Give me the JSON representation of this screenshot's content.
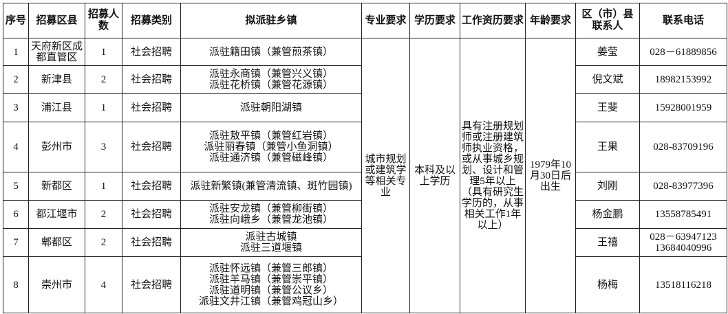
{
  "headers": [
    "序号",
    "招募区县",
    "招募人数",
    "招募类别",
    "拟派驻乡镇",
    "专业要求",
    "学历要求",
    "工作资历要求",
    "年龄要求",
    "区（市）县联系人",
    "联系电话"
  ],
  "shared": {
    "major": "城市规划或建筑学等相关专业",
    "education": "本科及以上学历",
    "experience": "具有注册规划师或注册建筑师执业资格，或从事城乡规划、设计和管理5年以上（具有研究生学历的，从事相关工作1年以上）",
    "age": "1979年10月30日后出生"
  },
  "rows": [
    {
      "no": "1",
      "county": "天府新区成都直管区",
      "count": "1",
      "type": "社会招聘",
      "towns": [
        "派驻籍田镇（兼管煎茶镇）"
      ],
      "contact": "姜莹",
      "phone": [
        "028－61889856"
      ]
    },
    {
      "no": "2",
      "county": "新津县",
      "count": "2",
      "type": "社会招聘",
      "towns": [
        "派驻永商镇（兼管兴义镇）",
        "派驻花桥镇（兼管花源镇）"
      ],
      "contact": "倪文斌",
      "phone": [
        "18982153992"
      ]
    },
    {
      "no": "3",
      "county": "浦江县",
      "count": "1",
      "type": "社会招聘",
      "towns": [
        "派驻朝阳湖镇"
      ],
      "contact": "王斐",
      "phone": [
        "15928001959"
      ]
    },
    {
      "no": "4",
      "county": "彭州市",
      "count": "3",
      "type": "社会招聘",
      "towns": [
        "派驻敖平镇（兼管红岩镇）",
        "派驻丽春镇（兼管小鱼洞镇）",
        "派驻通济镇（兼管磁峰镇）"
      ],
      "contact": "王果",
      "phone": [
        "028-83709196"
      ]
    },
    {
      "no": "5",
      "county": "新都区",
      "count": "1",
      "type": "社会招聘",
      "towns": [
        "派驻新繁镇(兼管清流镇、斑竹园镇)"
      ],
      "contact": "刘刚",
      "phone": [
        "028-83977396"
      ]
    },
    {
      "no": "6",
      "county": "都江堰市",
      "count": "2",
      "type": "社会招聘",
      "towns": [
        "派驻安龙镇（兼管柳街镇）",
        "派驻向峨乡（兼管龙池镇）"
      ],
      "contact": "杨金鹏",
      "phone": [
        "13558785491"
      ]
    },
    {
      "no": "7",
      "county": "郫都区",
      "count": "2",
      "type": "社会招聘",
      "towns": [
        "派驻古城镇",
        "派驻三道堰镇"
      ],
      "contact": "王禧",
      "phone": [
        "028－63947123",
        "13684040996"
      ]
    },
    {
      "no": "8",
      "county": "崇州市",
      "count": "4",
      "type": "社会招聘",
      "towns": [
        "派驻怀远镇（兼管三郎镇）",
        "派驻羊马镇（兼管崇平镇）",
        "派驻道明镇（兼管公议乡）",
        "派驻文井江镇（兼管鸡冠山乡）"
      ],
      "contact": "杨梅",
      "phone": [
        "13518116218"
      ]
    }
  ]
}
